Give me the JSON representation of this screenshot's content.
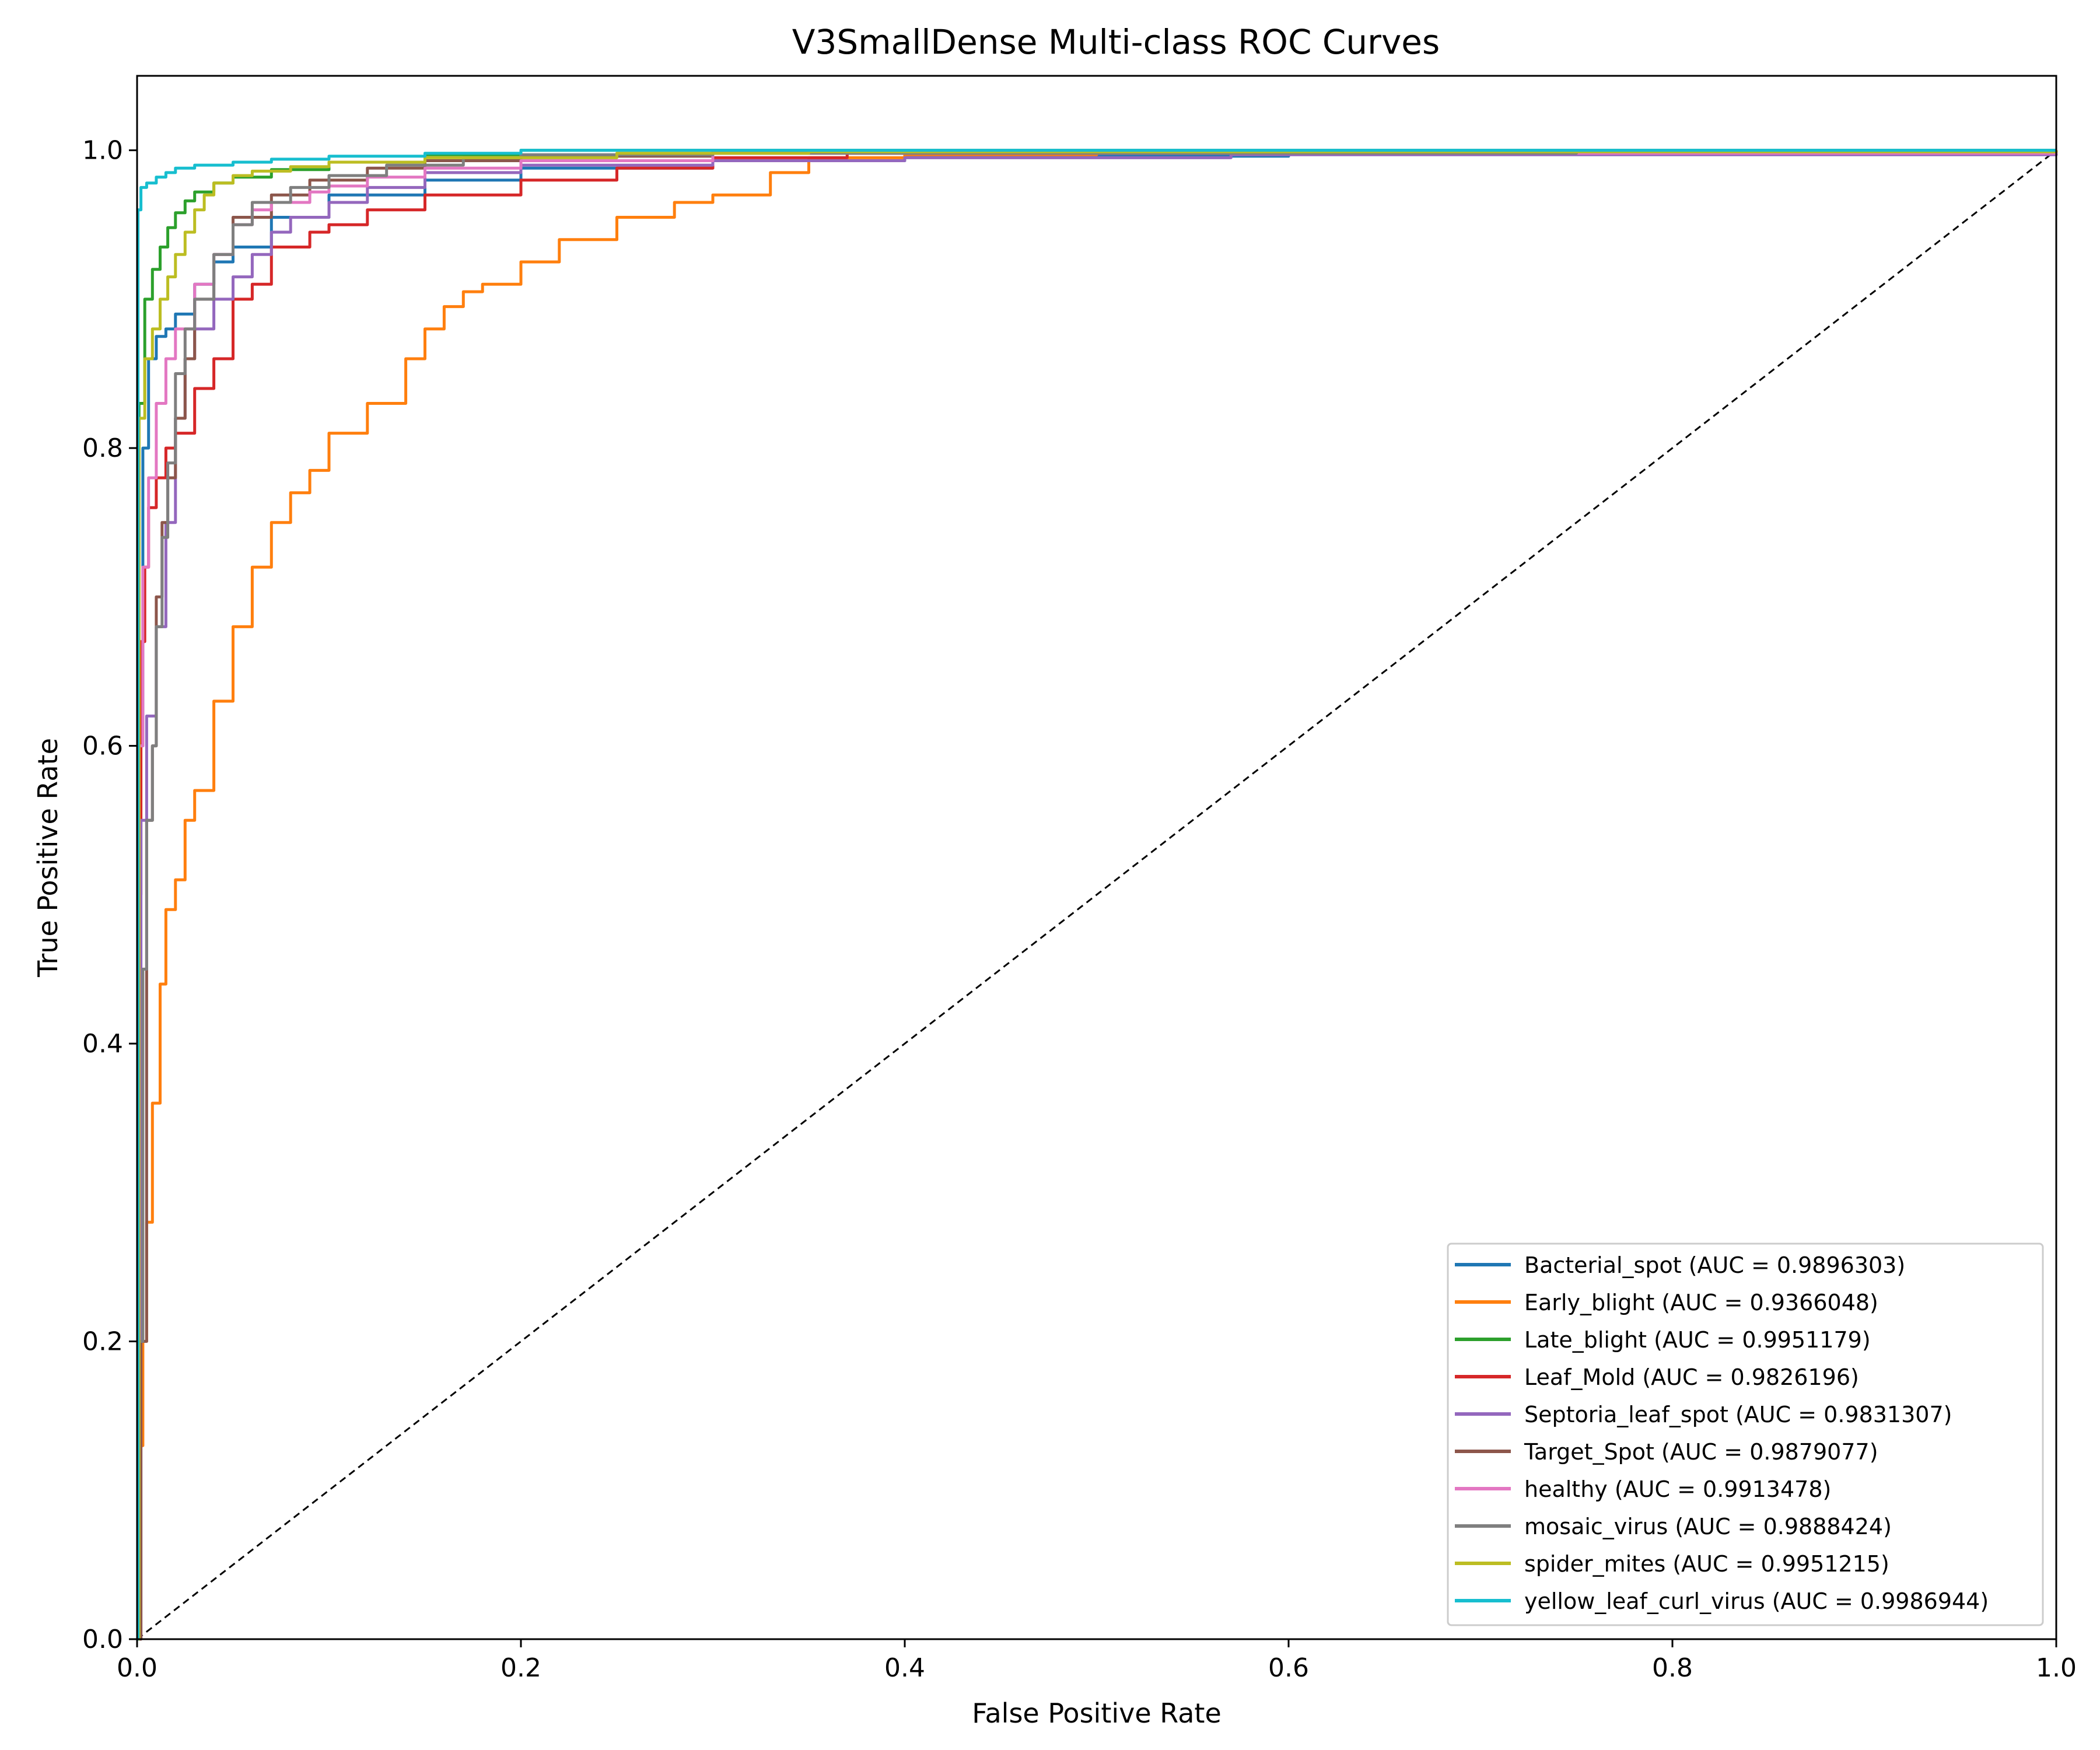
{
  "chart_data": {
    "type": "line",
    "title": "V3SmallDense Multi-class ROC Curves",
    "xlabel": "False Positive Rate",
    "ylabel": "True Positive Rate",
    "xlim": [
      0.0,
      1.0
    ],
    "ylim": [
      0.0,
      1.05
    ],
    "xticks": [
      "0.0",
      "0.2",
      "0.4",
      "0.6",
      "0.8",
      "1.0"
    ],
    "yticks": [
      "0.0",
      "0.2",
      "0.4",
      "0.6",
      "0.8",
      "1.0"
    ],
    "grid": false,
    "legend_position": "lower-right",
    "diagonal": {
      "x": [
        0,
        1
      ],
      "y": [
        0,
        1
      ],
      "color": "#000000",
      "style": "dashed"
    },
    "series": [
      {
        "name": "Bacterial_spot (AUC = 0.9896303)",
        "color": "#1f77b4",
        "x": [
          0,
          0.001,
          0.003,
          0.006,
          0.01,
          0.015,
          0.02,
          0.03,
          0.04,
          0.05,
          0.07,
          0.1,
          0.15,
          0.2,
          0.3,
          0.4,
          0.6,
          1.0
        ],
        "y": [
          0,
          0.6,
          0.8,
          0.86,
          0.875,
          0.88,
          0.89,
          0.91,
          0.925,
          0.935,
          0.955,
          0.97,
          0.98,
          0.988,
          0.993,
          0.996,
          0.999,
          1.0
        ]
      },
      {
        "name": "Early_blight (AUC = 0.9366048)",
        "color": "#ff7f0e",
        "x": [
          0,
          0.001,
          0.003,
          0.005,
          0.008,
          0.012,
          0.015,
          0.02,
          0.025,
          0.03,
          0.04,
          0.05,
          0.06,
          0.07,
          0.08,
          0.09,
          0.1,
          0.12,
          0.14,
          0.15,
          0.16,
          0.17,
          0.18,
          0.2,
          0.22,
          0.25,
          0.28,
          0.3,
          0.33,
          0.35,
          0.4,
          0.5,
          1.0
        ],
        "y": [
          0,
          0.13,
          0.2,
          0.28,
          0.36,
          0.44,
          0.49,
          0.51,
          0.55,
          0.57,
          0.63,
          0.68,
          0.72,
          0.75,
          0.77,
          0.785,
          0.81,
          0.83,
          0.86,
          0.88,
          0.895,
          0.905,
          0.91,
          0.925,
          0.94,
          0.955,
          0.965,
          0.97,
          0.985,
          0.995,
          0.997,
          0.999,
          1.0
        ]
      },
      {
        "name": "Late_blight (AUC = 0.9951179)",
        "color": "#2ca02c",
        "x": [
          0,
          0.001,
          0.004,
          0.008,
          0.012,
          0.016,
          0.02,
          0.025,
          0.03,
          0.04,
          0.05,
          0.07,
          0.1,
          0.15,
          0.2,
          1.0
        ],
        "y": [
          0,
          0.83,
          0.9,
          0.92,
          0.935,
          0.948,
          0.958,
          0.966,
          0.972,
          0.978,
          0.982,
          0.987,
          0.992,
          0.997,
          1.0,
          1.0
        ]
      },
      {
        "name": "Leaf_Mold (AUC = 0.9826196)",
        "color": "#d62728",
        "x": [
          0,
          0.001,
          0.002,
          0.004,
          0.006,
          0.01,
          0.015,
          0.02,
          0.03,
          0.04,
          0.05,
          0.06,
          0.07,
          0.09,
          0.1,
          0.12,
          0.15,
          0.2,
          0.25,
          0.3,
          0.37,
          1.0
        ],
        "y": [
          0,
          0.5,
          0.67,
          0.72,
          0.76,
          0.78,
          0.8,
          0.81,
          0.84,
          0.86,
          0.9,
          0.91,
          0.935,
          0.945,
          0.95,
          0.96,
          0.97,
          0.98,
          0.988,
          0.995,
          0.998,
          1.0
        ]
      },
      {
        "name": "Septoria_leaf_spot (AUC = 0.9831307)",
        "color": "#9467bd",
        "x": [
          0,
          0.002,
          0.005,
          0.01,
          0.015,
          0.02,
          0.025,
          0.03,
          0.04,
          0.05,
          0.06,
          0.07,
          0.08,
          0.1,
          0.12,
          0.15,
          0.2,
          0.3,
          0.4,
          0.57,
          1.0
        ],
        "y": [
          0,
          0.55,
          0.62,
          0.68,
          0.75,
          0.82,
          0.86,
          0.88,
          0.9,
          0.915,
          0.93,
          0.945,
          0.955,
          0.965,
          0.975,
          0.985,
          0.99,
          0.993,
          0.995,
          0.997,
          1.0
        ]
      },
      {
        "name": "Target_Spot (AUC = 0.9879077)",
        "color": "#8c564b",
        "x": [
          0,
          0.002,
          0.005,
          0.008,
          0.01,
          0.013,
          0.016,
          0.02,
          0.025,
          0.03,
          0.04,
          0.05,
          0.07,
          0.09,
          0.12,
          0.15,
          0.2,
          0.3,
          1.0
        ],
        "y": [
          0,
          0.2,
          0.55,
          0.6,
          0.7,
          0.75,
          0.78,
          0.82,
          0.86,
          0.9,
          0.93,
          0.955,
          0.97,
          0.98,
          0.988,
          0.993,
          0.996,
          0.999,
          1.0
        ]
      },
      {
        "name": "healthy (AUC = 0.9913478)",
        "color": "#e377c2",
        "x": [
          0,
          0.001,
          0.003,
          0.006,
          0.01,
          0.015,
          0.02,
          0.03,
          0.04,
          0.05,
          0.06,
          0.07,
          0.09,
          0.1,
          0.12,
          0.15,
          0.2,
          0.3,
          1.0
        ],
        "y": [
          0,
          0.6,
          0.72,
          0.78,
          0.83,
          0.86,
          0.88,
          0.91,
          0.93,
          0.95,
          0.96,
          0.965,
          0.972,
          0.976,
          0.982,
          0.988,
          0.993,
          0.998,
          1.0
        ]
      },
      {
        "name": "mosaic_virus (AUC = 0.9888424)",
        "color": "#7f7f7f",
        "x": [
          0,
          0.001,
          0.003,
          0.005,
          0.008,
          0.01,
          0.013,
          0.016,
          0.02,
          0.025,
          0.03,
          0.04,
          0.05,
          0.06,
          0.08,
          0.1,
          0.13,
          0.17,
          0.2,
          0.3,
          0.75,
          1.0
        ],
        "y": [
          0,
          0.2,
          0.45,
          0.55,
          0.6,
          0.68,
          0.74,
          0.79,
          0.85,
          0.88,
          0.9,
          0.93,
          0.95,
          0.965,
          0.975,
          0.983,
          0.99,
          0.995,
          0.997,
          0.998,
          0.999,
          1.0
        ]
      },
      {
        "name": "spider_mites (AUC = 0.9951215)",
        "color": "#bcbd22",
        "x": [
          0,
          0.001,
          0.004,
          0.008,
          0.012,
          0.016,
          0.02,
          0.025,
          0.03,
          0.035,
          0.04,
          0.05,
          0.06,
          0.08,
          0.1,
          0.15,
          0.25,
          0.35,
          1.0
        ],
        "y": [
          0,
          0.82,
          0.86,
          0.88,
          0.9,
          0.915,
          0.93,
          0.945,
          0.96,
          0.97,
          0.978,
          0.983,
          0.986,
          0.989,
          0.992,
          0.995,
          0.998,
          0.999,
          1.0
        ]
      },
      {
        "name": "yellow_leaf_curl_virus (AUC = 0.9986944)",
        "color": "#17becf",
        "x": [
          0,
          0.0005,
          0.002,
          0.005,
          0.01,
          0.015,
          0.02,
          0.03,
          0.05,
          0.07,
          0.1,
          0.15,
          0.2,
          1.0
        ],
        "y": [
          0,
          0.96,
          0.975,
          0.978,
          0.982,
          0.985,
          0.988,
          0.99,
          0.992,
          0.994,
          0.996,
          0.998,
          1.0,
          1.0
        ]
      }
    ]
  }
}
